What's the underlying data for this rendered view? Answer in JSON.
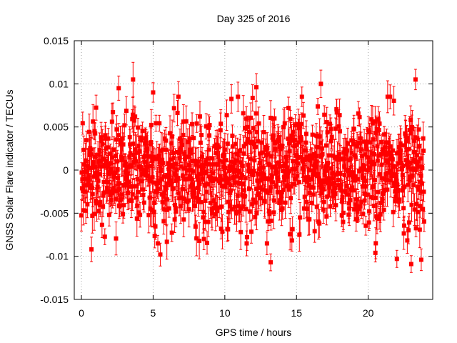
{
  "chart_data": {
    "type": "scatter",
    "title": "Day 325 of 2016",
    "xlabel": "GPS time / hours",
    "ylabel": "GNSS Solar Flare indicator / TECUs",
    "xlim": [
      -0.5,
      24.5
    ],
    "ylim": [
      -0.015,
      0.015
    ],
    "x_ticks": [
      0,
      5,
      10,
      15,
      20
    ],
    "x_tick_labels": [
      "0",
      "5",
      "10",
      "15",
      "20"
    ],
    "y_ticks": [
      -0.015,
      -0.01,
      -0.005,
      0,
      0.005,
      0.01,
      0.015
    ],
    "y_tick_labels": [
      "-0.015",
      "-0.01",
      "-0.005",
      "0",
      "0.005",
      "0.01",
      "0.015"
    ],
    "grid": true,
    "error_bars": true,
    "series_color": "#ff0000",
    "x_range": [
      0,
      23.9
    ],
    "sample_points": [
      {
        "x": 2.6,
        "y": 0.0095
      },
      {
        "x": 3.6,
        "y": 0.0105
      },
      {
        "x": 5.0,
        "y": 0.009
      },
      {
        "x": 12.2,
        "y": 0.0096
      },
      {
        "x": 16.7,
        "y": 0.01
      },
      {
        "x": 23.3,
        "y": 0.0105
      },
      {
        "x": 0.7,
        "y": -0.0092
      },
      {
        "x": 5.5,
        "y": -0.0098
      },
      {
        "x": 13.2,
        "y": -0.0107
      },
      {
        "x": 20.5,
        "y": -0.0096
      },
      {
        "x": 22.0,
        "y": -0.0103
      },
      {
        "x": 23.0,
        "y": -0.0109
      },
      {
        "x": 23.7,
        "y": -0.0104
      }
    ]
  }
}
